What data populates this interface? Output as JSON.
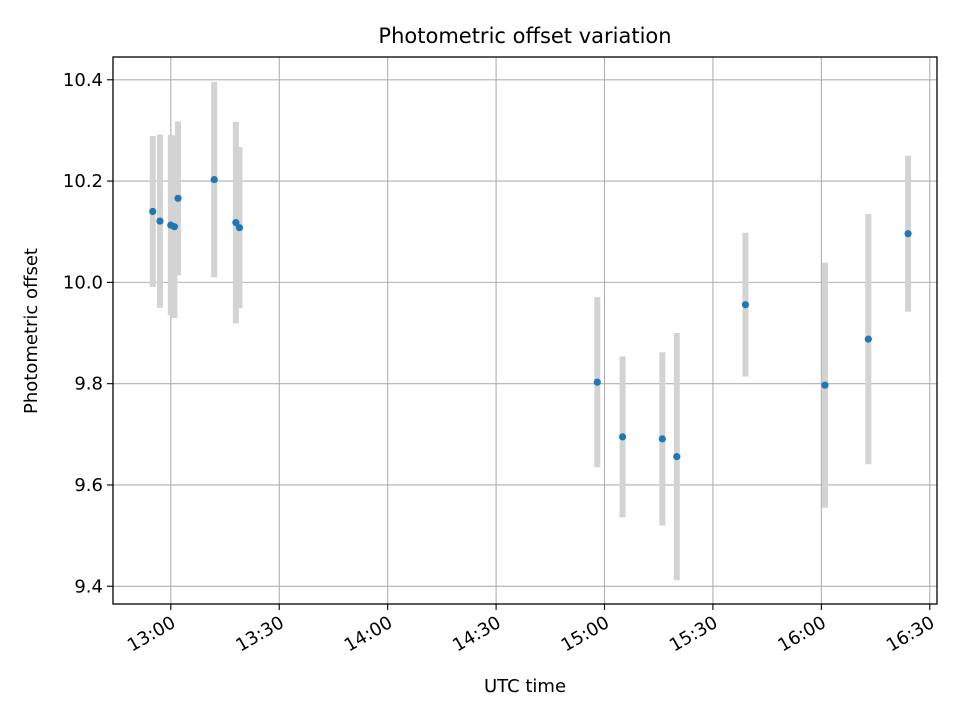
{
  "chart_data": {
    "type": "scatter",
    "title": "Photometric offset variation",
    "xlabel": "UTC time",
    "ylabel": "Photometric offset",
    "x_ticks": [
      "13:00",
      "13:30",
      "14:00",
      "14:30",
      "15:00",
      "15:30",
      "16:00",
      "16:30"
    ],
    "y_ticks": [
      "9.4",
      "9.6",
      "9.8",
      "10.0",
      "10.2",
      "10.4"
    ],
    "xlim": [
      "12:44",
      "16:32"
    ],
    "ylim": [
      9.365,
      10.445
    ],
    "grid": true,
    "marker_color": "#1f77b4",
    "errorbar_color": "#d3d3d3",
    "points": [
      {
        "x": "12:55",
        "y": 10.14,
        "yerr": 0.149
      },
      {
        "x": "12:57",
        "y": 10.121,
        "yerr": 0.171
      },
      {
        "x": "13:00",
        "y": 10.113,
        "yerr": 0.178
      },
      {
        "x": "13:01",
        "y": 10.11,
        "yerr": 0.18
      },
      {
        "x": "13:02",
        "y": 10.166,
        "yerr": 0.152
      },
      {
        "x": "13:12",
        "y": 10.203,
        "yerr": 0.193
      },
      {
        "x": "13:18",
        "y": 10.118,
        "yerr": 0.199
      },
      {
        "x": "13:19",
        "y": 10.108,
        "yerr": 0.159
      },
      {
        "x": "14:58",
        "y": 9.803,
        "yerr": 0.168
      },
      {
        "x": "15:05",
        "y": 9.695,
        "yerr": 0.159
      },
      {
        "x": "15:16",
        "y": 9.691,
        "yerr": 0.171
      },
      {
        "x": "15:20",
        "y": 9.656,
        "yerr": 0.244
      },
      {
        "x": "15:39",
        "y": 9.956,
        "yerr": 0.142
      },
      {
        "x": "16:01",
        "y": 9.797,
        "yerr": 0.242
      },
      {
        "x": "16:13",
        "y": 9.888,
        "yerr": 0.247
      },
      {
        "x": "16:24",
        "y": 10.096,
        "yerr": 0.154
      }
    ]
  }
}
